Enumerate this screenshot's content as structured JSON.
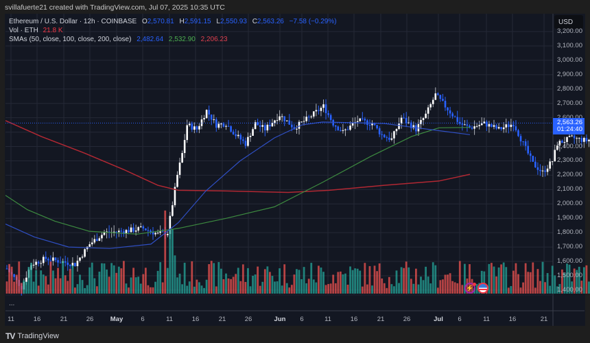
{
  "header": {
    "credit": "svillafuerte21 created with TradingView.com, Jul 07, 2025 10:35 UTC"
  },
  "legend": {
    "symbol": "Ethereum / U.S. Dollar · 12h · COINBASE",
    "open_label": "O",
    "open": "2,570.81",
    "high_label": "H",
    "high": "2,591.15",
    "low_label": "L",
    "low": "2,550.93",
    "close_label": "C",
    "close": "2,563.26",
    "change": "−7.58 (−0.29%)",
    "vol_label": "Vol · ETH",
    "vol_value": "21.8 K",
    "sma_label": "SMAs (50, close, 100, close, 200, close)",
    "sma50": "2,482.64",
    "sma100": "2,532.90",
    "sma200": "2,206.23"
  },
  "price_axis": {
    "currency": "USD",
    "labels": [
      "3,200.00",
      "3,100.00",
      "3,000.00",
      "2,900.00",
      "2,800.00",
      "2,700.00",
      "2,600.00",
      "2,400.00",
      "2,300.00",
      "2,200.00",
      "2,100.00",
      "2,000.00",
      "1,900.00",
      "1,800.00",
      "1,700.00",
      "1,600.00",
      "1,500.00",
      "1,400.00"
    ],
    "last_price": "2,563.26",
    "countdown": "01:24:40"
  },
  "time_axis": {
    "labels": [
      {
        "text": "11",
        "bold": false
      },
      {
        "text": "16",
        "bold": false
      },
      {
        "text": "21",
        "bold": false
      },
      {
        "text": "26",
        "bold": false
      },
      {
        "text": "May",
        "bold": true
      },
      {
        "text": "6",
        "bold": false
      },
      {
        "text": "11",
        "bold": false
      },
      {
        "text": "16",
        "bold": false
      },
      {
        "text": "21",
        "bold": false
      },
      {
        "text": "26",
        "bold": false
      },
      {
        "text": "Jun",
        "bold": true
      },
      {
        "text": "6",
        "bold": false
      },
      {
        "text": "11",
        "bold": false
      },
      {
        "text": "16",
        "bold": false
      },
      {
        "text": "21",
        "bold": false
      },
      {
        "text": "26",
        "bold": false
      },
      {
        "text": "Jul",
        "bold": true
      },
      {
        "text": "6",
        "bold": false
      },
      {
        "text": "11",
        "bold": false
      },
      {
        "text": "16",
        "bold": false
      },
      {
        "text": "21",
        "bold": false
      }
    ]
  },
  "pane_collapse": "...",
  "footer": {
    "brand": "TradingView",
    "logo": "TV"
  },
  "colors": {
    "background": "#131722",
    "up_candle": "#ffffff",
    "down_candle": "#2962ff",
    "vol_up": "#26a69a",
    "vol_down": "#ef5350",
    "sma50": "#2962ff",
    "sma100": "#4caf50",
    "sma200": "#b22833"
  },
  "chart_data": {
    "type": "candlestick",
    "title": "Ethereum / U.S. Dollar · 12h · COINBASE",
    "xlabel": "",
    "ylabel": "USD",
    "ylim": [
      1400,
      3200
    ],
    "x_range": [
      "Apr 10, 2025",
      "Jul 22, 2025"
    ],
    "grid": true,
    "last": {
      "open": 2570.81,
      "high": 2591.15,
      "low": 2550.93,
      "close": 2563.26,
      "change": -7.58,
      "change_pct": -0.29,
      "volume": "21.8K"
    },
    "close_approx": {
      "x": [
        "Apr 10",
        "Apr 15",
        "Apr 20",
        "Apr 25",
        "May 1",
        "May 6",
        "May 8",
        "May 10",
        "May 13",
        "May 16",
        "May 21",
        "May 26",
        "Jun 1",
        "Jun 6",
        "Jun 11",
        "Jun 16",
        "Jun 21",
        "Jun 23",
        "Jun 26",
        "Jul 1",
        "Jul 3",
        "Jul 7"
      ],
      "values": [
        1550,
        1620,
        1640,
        1790,
        1820,
        1800,
        2200,
        2550,
        2650,
        2550,
        2600,
        2600,
        2550,
        2480,
        2780,
        2530,
        2300,
        2220,
        2450,
        2450,
        2600,
        2563
      ]
    },
    "series": [
      {
        "name": "SMA 50",
        "color": "#2962ff",
        "last": 2482.64,
        "values_approx": [
          1860,
          1770,
          1700,
          1690,
          1690,
          1750,
          1950,
          2200,
          2450,
          2560,
          2570,
          2560,
          2520,
          2482
        ]
      },
      {
        "name": "SMA 100",
        "color": "#4caf50",
        "last": 2532.9,
        "values_approx": [
          2060,
          1930,
          1820,
          1790,
          1800,
          1870,
          1950,
          2050,
          2250,
          2400,
          2500,
          2540,
          2533
        ]
      },
      {
        "name": "SMA 200",
        "color": "#b22833",
        "last": 2206.23,
        "values_approx": [
          2580,
          2450,
          2330,
          2200,
          2100,
          2090,
          2090,
          2085,
          2100,
          2130,
          2160,
          2206
        ]
      }
    ]
  }
}
